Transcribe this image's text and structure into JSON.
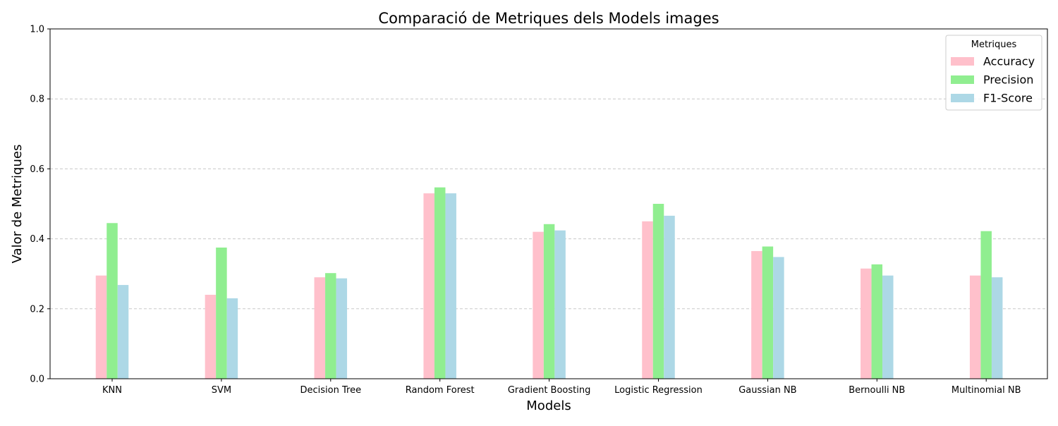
{
  "chart_data": {
    "type": "bar",
    "title": "Comparació de Metriques dels Models images",
    "xlabel": "Models",
    "ylabel": "Valor de Metriques",
    "ylim": [
      0,
      1
    ],
    "yticks": [
      "0.0",
      "0.2",
      "0.4",
      "0.6",
      "0.8",
      "1.0"
    ],
    "grid": "y-dashed",
    "categories": [
      "KNN",
      "SVM",
      "Decision Tree",
      "Random Forest",
      "Gradient Boosting",
      "Logistic Regression",
      "Gaussian NB",
      "Bernoulli NB",
      "Multinomial NB"
    ],
    "series": [
      {
        "name": "Accuracy",
        "color": "#ffc0cb",
        "values": [
          0.295,
          0.24,
          0.29,
          0.53,
          0.42,
          0.45,
          0.365,
          0.315,
          0.295
        ]
      },
      {
        "name": "Precision",
        "color": "#90ee90",
        "values": [
          0.445,
          0.375,
          0.302,
          0.547,
          0.442,
          0.5,
          0.378,
          0.327,
          0.422
        ]
      },
      {
        "name": "F1-Score",
        "color": "#add8e6",
        "values": [
          0.268,
          0.23,
          0.287,
          0.53,
          0.424,
          0.466,
          0.348,
          0.295,
          0.29
        ]
      }
    ],
    "legend": {
      "title": "Metriques",
      "position": "top-right"
    }
  }
}
